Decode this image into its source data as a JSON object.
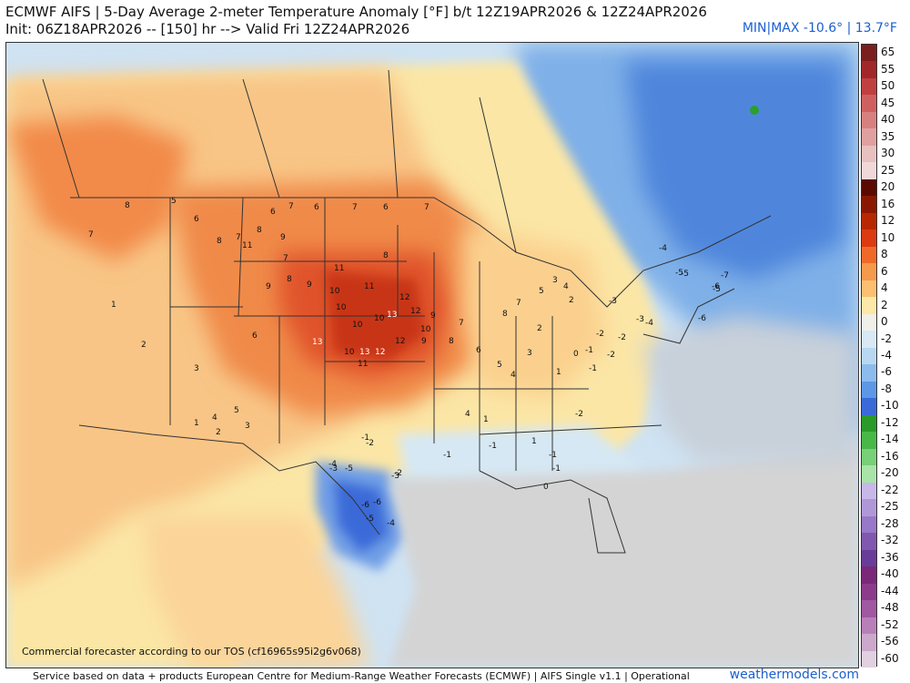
{
  "header": {
    "title": "ECMWF AIFS | 5-Day Average 2-meter Temperature Anomaly [°F] b/t 12Z19APR2026 & 12Z24APR2026",
    "subtitle": "Init: 06Z18APR2026 -- [150] hr --> Valid Fri 12Z24APR2026",
    "minmax": "MIN|MAX -10.6° | 13.7°F"
  },
  "credit": "Commercial forecaster according to our TOS (cf16965s95i2g6v068)",
  "footer": {
    "source": "Service based on data + products European Centre for Medium-Range Weather Forecasts (ECMWF) | AIFS Single v1.1 | Operational",
    "site": "weathermodels.com"
  },
  "colorbar": {
    "labels": [
      "65",
      "55",
      "50",
      "45",
      "40",
      "35",
      "30",
      "25",
      "20",
      "16",
      "12",
      "10",
      "8",
      "6",
      "4",
      "2",
      "0",
      "-2",
      "-4",
      "-6",
      "-8",
      "-10",
      "-12",
      "-14",
      "-16",
      "-20",
      "-22",
      "-25",
      "-28",
      "-32",
      "-36",
      "-40",
      "-44",
      "-48",
      "-52",
      "-56",
      "-60"
    ],
    "colors": [
      "#7a1e1e",
      "#a02828",
      "#c04040",
      "#d06060",
      "#d88080",
      "#e0a0a0",
      "#e8c0c0",
      "#f0d8d8",
      "#5a0a00",
      "#8a1800",
      "#b82800",
      "#dc3a10",
      "#ef6a28",
      "#f59a4a",
      "#fbc070",
      "#fde8a8",
      "#f0f0e8",
      "#d8e8f4",
      "#b8d8f2",
      "#8cbcee",
      "#5c98e6",
      "#3a6ad8",
      "#2a9a2a",
      "#48b848",
      "#78d078",
      "#a8e4a8",
      "#c8b8e8",
      "#b098d8",
      "#9878c8",
      "#8058b0",
      "#683c98",
      "#7a2878",
      "#8c3a8c",
      "#a058a0",
      "#b880b8",
      "#cca8cc",
      "#e0d0e0"
    ]
  },
  "map": {
    "labels": [
      {
        "t": "8"
      },
      {
        "t": "7"
      },
      {
        "t": "5"
      },
      {
        "t": "6"
      },
      {
        "t": "8"
      },
      {
        "t": "7"
      },
      {
        "t": "6"
      },
      {
        "t": "6"
      },
      {
        "t": "7"
      },
      {
        "t": "6"
      },
      {
        "t": "7"
      },
      {
        "t": "7"
      },
      {
        "t": "8"
      },
      {
        "t": "9"
      },
      {
        "t": "7"
      },
      {
        "t": "11"
      },
      {
        "t": "8"
      },
      {
        "t": "9"
      },
      {
        "t": "9"
      },
      {
        "t": "10"
      },
      {
        "t": "10"
      },
      {
        "t": "11"
      },
      {
        "t": "11"
      },
      {
        "t": "10"
      },
      {
        "t": "12"
      },
      {
        "t": "13"
      },
      {
        "t": "12"
      },
      {
        "t": "10"
      },
      {
        "t": "9"
      },
      {
        "t": "8"
      },
      {
        "t": "13"
      },
      {
        "t": "12"
      },
      {
        "t": "10"
      },
      {
        "t": "13"
      },
      {
        "t": "12"
      },
      {
        "t": "10"
      },
      {
        "t": "11"
      },
      {
        "t": "9"
      },
      {
        "t": "8"
      },
      {
        "t": "7"
      },
      {
        "t": "6"
      },
      {
        "t": "5"
      },
      {
        "t": "4"
      },
      {
        "t": "3"
      },
      {
        "t": "2"
      },
      {
        "t": "1"
      },
      {
        "t": "0"
      },
      {
        "t": "-1"
      },
      {
        "t": "-2"
      },
      {
        "t": "-3"
      },
      {
        "t": "-4"
      },
      {
        "t": "-5"
      },
      {
        "t": "-6"
      },
      {
        "t": "-7"
      },
      {
        "t": "-5"
      },
      {
        "t": "-6"
      },
      {
        "t": "-3"
      },
      {
        "t": "-2"
      },
      {
        "t": "-1"
      },
      {
        "t": "1"
      },
      {
        "t": "2"
      },
      {
        "t": "3"
      },
      {
        "t": "4"
      },
      {
        "t": "5"
      },
      {
        "t": "6"
      },
      {
        "t": "3"
      },
      {
        "t": "2"
      },
      {
        "t": "1"
      },
      {
        "t": "-1"
      },
      {
        "t": "-2"
      },
      {
        "t": "-3"
      },
      {
        "t": "-4"
      },
      {
        "t": "-6"
      },
      {
        "t": "-5"
      },
      {
        "t": "-4"
      },
      {
        "t": "-2"
      },
      {
        "t": "-1"
      },
      {
        "t": "0"
      },
      {
        "t": "1"
      },
      {
        "t": "4"
      },
      {
        "t": "8"
      },
      {
        "t": "7"
      },
      {
        "t": "5"
      },
      {
        "t": "3"
      },
      {
        "t": "4"
      },
      {
        "t": "2"
      },
      {
        "t": "1"
      },
      {
        "t": "-1"
      },
      {
        "t": "-1"
      },
      {
        "t": "-2"
      },
      {
        "t": "-3"
      },
      {
        "t": "-5"
      },
      {
        "t": "-6"
      },
      {
        "t": "-5"
      },
      {
        "t": "-4"
      },
      {
        "t": "-2"
      },
      {
        "t": "-1"
      },
      {
        "t": "1"
      }
    ]
  }
}
